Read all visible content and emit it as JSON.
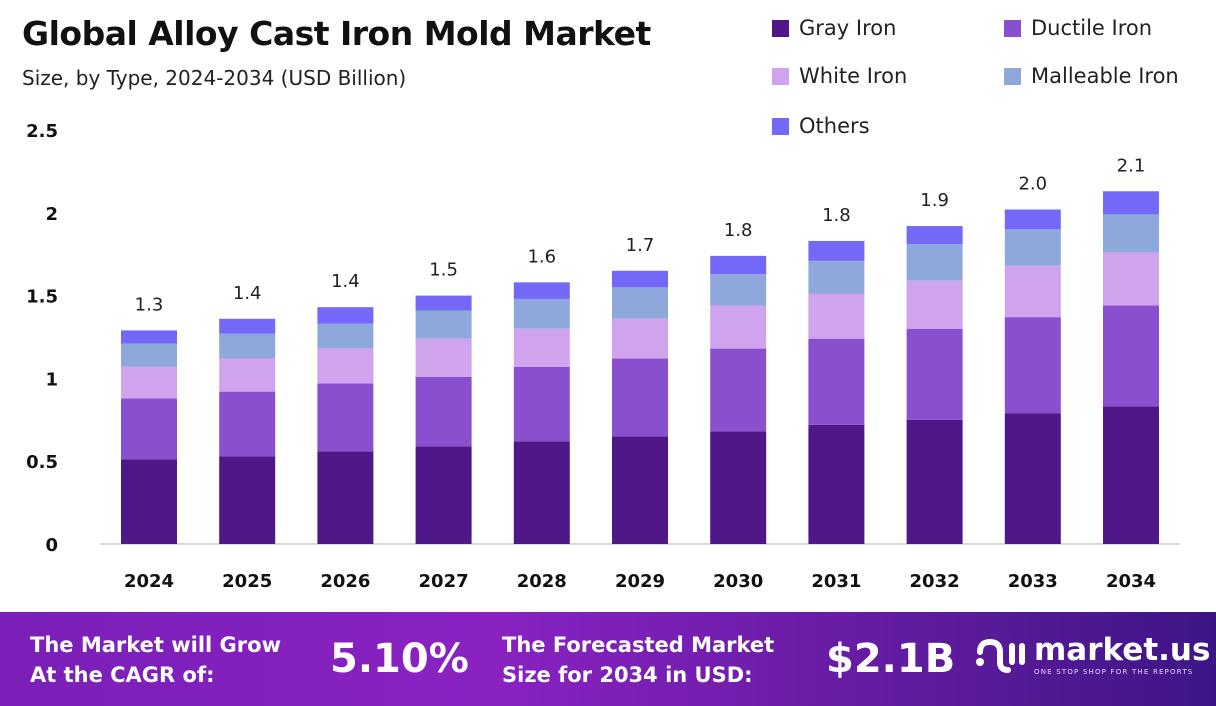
{
  "chart_data": {
    "type": "bar",
    "stacked": true,
    "title": "Global Alloy Cast Iron Mold Market",
    "subtitle": "Size, by Type, 2024-2034 (USD Billion)",
    "categories": [
      "2024",
      "2025",
      "2026",
      "2027",
      "2028",
      "2029",
      "2030",
      "2031",
      "2032",
      "2033",
      "2034"
    ],
    "series": [
      {
        "name": "Gray Iron",
        "color": "#4f1787",
        "values": [
          0.51,
          0.53,
          0.56,
          0.59,
          0.62,
          0.65,
          0.68,
          0.72,
          0.75,
          0.79,
          0.83
        ]
      },
      {
        "name": "Ductile Iron",
        "color": "#8a4fcf",
        "values": [
          0.37,
          0.39,
          0.41,
          0.42,
          0.45,
          0.47,
          0.5,
          0.52,
          0.55,
          0.58,
          0.61
        ]
      },
      {
        "name": "White Iron",
        "color": "#d0a4ec",
        "values": [
          0.19,
          0.2,
          0.21,
          0.23,
          0.23,
          0.24,
          0.26,
          0.27,
          0.29,
          0.31,
          0.32
        ]
      },
      {
        "name": "Malleable Iron",
        "color": "#8fa8dc",
        "values": [
          0.14,
          0.15,
          0.15,
          0.17,
          0.18,
          0.19,
          0.19,
          0.2,
          0.22,
          0.22,
          0.23
        ]
      },
      {
        "name": "Others",
        "color": "#7468f8",
        "values": [
          0.08,
          0.09,
          0.1,
          0.09,
          0.1,
          0.1,
          0.11,
          0.12,
          0.11,
          0.12,
          0.14
        ]
      }
    ],
    "totals": [
      "1.3",
      "1.4",
      "1.4",
      "1.5",
      "1.6",
      "1.7",
      "1.8",
      "1.8",
      "1.9",
      "2.0",
      "2.1"
    ],
    "yticks": [
      "0",
      "0.5",
      "1",
      "1.5",
      "2",
      "2.5"
    ],
    "ylim": [
      0,
      2.5
    ],
    "grid": false,
    "legend": "top-right"
  },
  "footer": {
    "cagr_label": [
      "The Market will Grow",
      "At the CAGR of:"
    ],
    "cagr_value": "5.10%",
    "forecast_label": [
      "The Forecasted Market",
      "Size for 2034 in USD:"
    ],
    "forecast_value": "$2.1B",
    "logo_name": "market.us",
    "logo_tagline": "ONE STOP SHOP FOR THE REPORTS"
  }
}
